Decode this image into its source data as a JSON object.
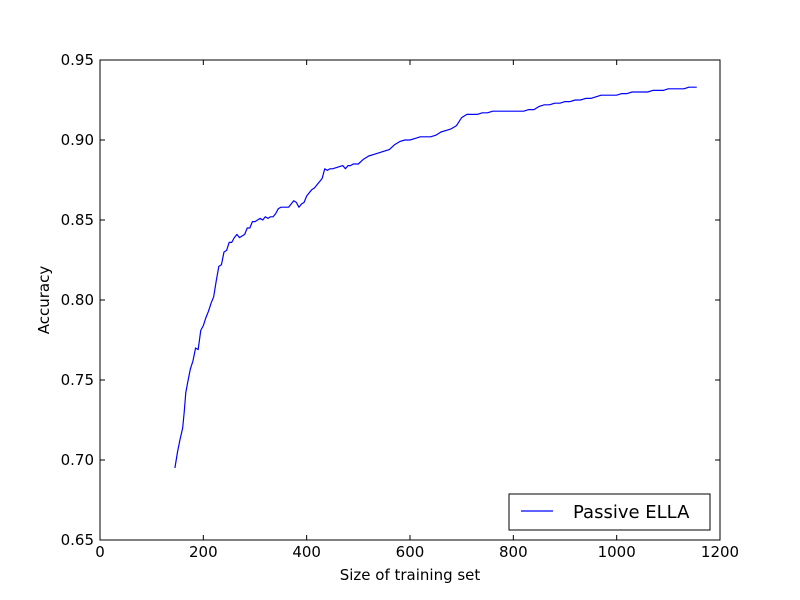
{
  "chart_data": {
    "type": "line",
    "title": "",
    "xlabel": "Size of training set",
    "ylabel": "Accuracy",
    "xlim": [
      0,
      1200
    ],
    "ylim": [
      0.65,
      0.95
    ],
    "xticks": [
      0,
      200,
      400,
      600,
      800,
      1000,
      1200
    ],
    "yticks": [
      0.65,
      0.7,
      0.75,
      0.8,
      0.85,
      0.9,
      0.95
    ],
    "xtick_labels": [
      "0",
      "200",
      "400",
      "600",
      "800",
      "1000",
      "1200"
    ],
    "ytick_labels": [
      "0.65",
      "0.70",
      "0.75",
      "0.80",
      "0.85",
      "0.90",
      "0.95"
    ],
    "grid": false,
    "legend_position": "lower-right",
    "series": [
      {
        "name": "Passive ELLA",
        "color": "#0000ff",
        "x": [
          145,
          150,
          155,
          160,
          163,
          166,
          170,
          175,
          180,
          185,
          190,
          195,
          200,
          205,
          210,
          215,
          220,
          225,
          230,
          235,
          240,
          245,
          250,
          255,
          260,
          265,
          270,
          275,
          280,
          285,
          290,
          295,
          300,
          305,
          310,
          315,
          320,
          325,
          330,
          335,
          340,
          345,
          350,
          355,
          360,
          365,
          370,
          375,
          380,
          385,
          390,
          395,
          400,
          405,
          410,
          415,
          420,
          425,
          430,
          435,
          440,
          445,
          450,
          460,
          470,
          475,
          480,
          485,
          490,
          500,
          510,
          520,
          530,
          540,
          550,
          560,
          570,
          580,
          590,
          600,
          610,
          620,
          630,
          640,
          650,
          660,
          670,
          680,
          690,
          700,
          710,
          720,
          730,
          740,
          750,
          760,
          770,
          780,
          790,
          800,
          810,
          820,
          830,
          840,
          850,
          860,
          870,
          880,
          890,
          900,
          910,
          920,
          930,
          940,
          950,
          960,
          970,
          980,
          990,
          1000,
          1010,
          1020,
          1030,
          1040,
          1050,
          1060,
          1070,
          1080,
          1090,
          1100,
          1110,
          1120,
          1130,
          1140,
          1155
        ],
        "y": [
          0.695,
          0.705,
          0.713,
          0.72,
          0.73,
          0.742,
          0.749,
          0.757,
          0.762,
          0.77,
          0.769,
          0.781,
          0.784,
          0.789,
          0.793,
          0.798,
          0.802,
          0.812,
          0.821,
          0.822,
          0.83,
          0.831,
          0.836,
          0.836,
          0.839,
          0.841,
          0.839,
          0.84,
          0.841,
          0.845,
          0.845,
          0.849,
          0.849,
          0.85,
          0.851,
          0.85,
          0.852,
          0.851,
          0.852,
          0.852,
          0.854,
          0.857,
          0.858,
          0.858,
          0.858,
          0.858,
          0.86,
          0.862,
          0.861,
          0.858,
          0.86,
          0.861,
          0.865,
          0.867,
          0.869,
          0.87,
          0.872,
          0.874,
          0.876,
          0.882,
          0.881,
          0.882,
          0.882,
          0.883,
          0.884,
          0.882,
          0.884,
          0.884,
          0.885,
          0.885,
          0.888,
          0.89,
          0.891,
          0.892,
          0.893,
          0.894,
          0.897,
          0.899,
          0.9,
          0.9,
          0.901,
          0.902,
          0.902,
          0.902,
          0.903,
          0.905,
          0.906,
          0.907,
          0.909,
          0.914,
          0.916,
          0.916,
          0.916,
          0.917,
          0.917,
          0.918,
          0.918,
          0.918,
          0.918,
          0.918,
          0.918,
          0.918,
          0.919,
          0.919,
          0.921,
          0.922,
          0.922,
          0.923,
          0.923,
          0.924,
          0.924,
          0.925,
          0.925,
          0.926,
          0.926,
          0.927,
          0.928,
          0.928,
          0.928,
          0.928,
          0.929,
          0.929,
          0.93,
          0.93,
          0.93,
          0.93,
          0.931,
          0.931,
          0.931,
          0.932,
          0.932,
          0.932,
          0.932,
          0.933,
          0.933
        ]
      }
    ]
  }
}
